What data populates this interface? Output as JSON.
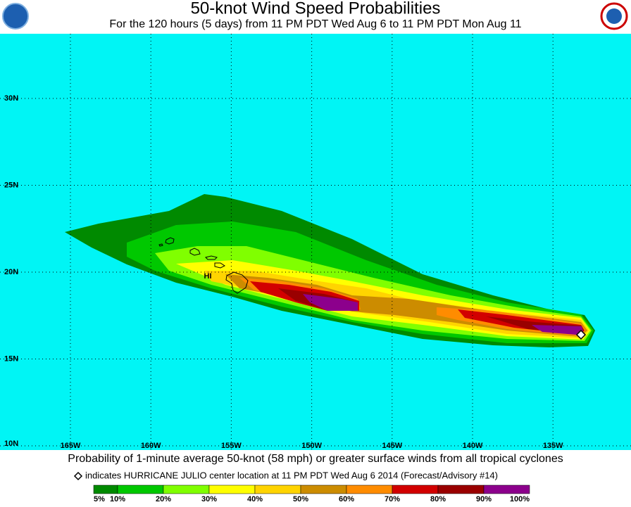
{
  "header": {
    "title": "50-knot Wind Speed Probabilities",
    "subtitle": "For the 120 hours (5 days) from 11 PM PDT Wed Aug 6 to 11 PM PDT Mon Aug 11"
  },
  "map": {
    "latitude_labels": [
      "30N",
      "25N",
      "20N",
      "15N",
      "10N"
    ],
    "longitude_labels": [
      "165W",
      "160W",
      "155W",
      "150W",
      "145W",
      "140W",
      "135W"
    ],
    "place_label": "HI"
  },
  "footer": {
    "caption": "Probability of 1-minute average 50-knot (58 mph) or greater surface winds from all tropical cyclones",
    "marker_note": "indicates HURRICANE JULIO center location at 11 PM PDT Wed Aug 6 2014 (Forecast/Advisory #14)"
  },
  "legend": {
    "colors": [
      "#008a00",
      "#00c800",
      "#80ff00",
      "#ffff00",
      "#ffd400",
      "#cc8c00",
      "#ff8c00",
      "#d20000",
      "#9a0000",
      "#8c008c"
    ],
    "labels": [
      "5%",
      "10%",
      "20%",
      "30%",
      "40%",
      "50%",
      "60%",
      "70%",
      "80%",
      "90%",
      "100%"
    ]
  }
}
